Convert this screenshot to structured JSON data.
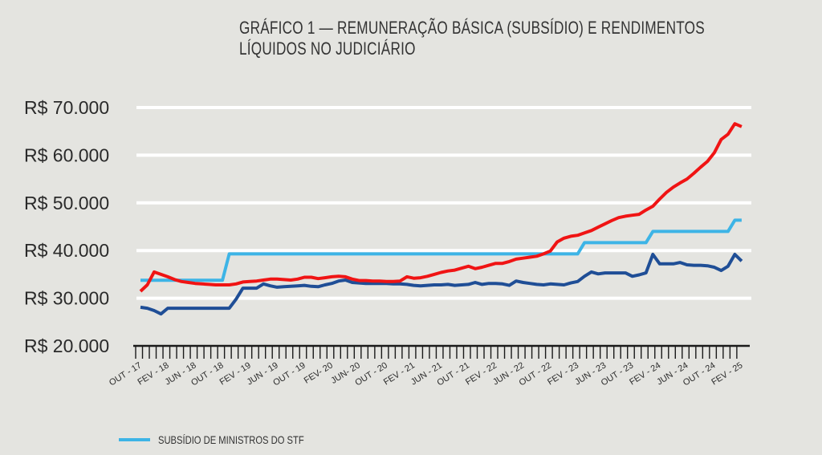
{
  "chart_data": {
    "type": "line",
    "title": "GRÁFICO 1 — REMUNERAÇÃO BÁSICA (SUBSÍDIO) E RENDIMENTOS LÍQUIDOS NO JUDICIÁRIO",
    "title_lines": [
      "GRÁFICO 1 — REMUNERAÇÃO BÁSICA (SUBSÍDIO) E RENDIMENTOS",
      "LÍQUIDOS NO JUDICIÁRIO"
    ],
    "xlabel": "",
    "ylabel": "",
    "ylim": [
      20000,
      70000
    ],
    "y_ticks": [
      20000,
      30000,
      40000,
      50000,
      60000,
      70000
    ],
    "y_tick_labels": [
      "R$ 20.000",
      "R$ 30.000",
      "R$ 40.000",
      "R$ 50.000",
      "R$ 60.000",
      "R$ 70.000"
    ],
    "grid": true,
    "x": [
      "2017-10",
      "2017-11",
      "2017-12",
      "2018-01",
      "2018-02",
      "2018-03",
      "2018-04",
      "2018-05",
      "2018-06",
      "2018-07",
      "2018-08",
      "2018-09",
      "2018-10",
      "2018-11",
      "2018-12",
      "2019-01",
      "2019-02",
      "2019-03",
      "2019-04",
      "2019-05",
      "2019-06",
      "2019-07",
      "2019-08",
      "2019-09",
      "2019-10",
      "2019-11",
      "2019-12",
      "2020-01",
      "2020-02",
      "2020-03",
      "2020-04",
      "2020-05",
      "2020-06",
      "2020-07",
      "2020-08",
      "2020-09",
      "2020-10",
      "2020-11",
      "2020-12",
      "2021-01",
      "2021-02",
      "2021-03",
      "2021-04",
      "2021-05",
      "2021-06",
      "2021-07",
      "2021-08",
      "2021-09",
      "2021-10",
      "2021-11",
      "2021-12",
      "2022-01",
      "2022-02",
      "2022-03",
      "2022-04",
      "2022-05",
      "2022-06",
      "2022-07",
      "2022-08",
      "2022-09",
      "2022-10",
      "2022-11",
      "2022-12",
      "2023-01",
      "2023-02",
      "2023-03",
      "2023-04",
      "2023-05",
      "2023-06",
      "2023-07",
      "2023-08",
      "2023-09",
      "2023-10",
      "2023-11",
      "2023-12",
      "2024-01",
      "2024-02",
      "2024-03",
      "2024-04",
      "2024-05",
      "2024-06",
      "2024-07",
      "2024-08",
      "2024-09",
      "2024-10",
      "2024-11",
      "2024-12",
      "2025-01",
      "2025-02"
    ],
    "x_tick_labels": [
      "OUT - 17",
      "FEV - 18",
      "JUN - 18",
      "OUT - 18",
      "FEV - 19",
      "JUN - 19",
      "OUT - 19",
      "FEV- 20",
      "JUN- 20",
      "OUT - 20",
      "FEV - 21",
      "JUN - 21",
      "OUT - 21",
      "FEV - 22",
      "JUN - 22",
      "OUT - 22",
      "FEV - 23",
      "JUN - 23",
      "OUT - 23",
      "FEV - 24",
      "JUN - 24",
      "OUT - 24",
      "FEV - 25"
    ],
    "x_tick_every": 4,
    "legend_position": "bottom-left",
    "series": [
      {
        "name": "SUBSÍDIO DE MINISTROS DO STF",
        "color": "#3db4e6",
        "values": [
          33763,
          33763,
          33763,
          33763,
          33763,
          33763,
          33763,
          33763,
          33763,
          33763,
          33763,
          33763,
          33763,
          39293,
          39293,
          39293,
          39293,
          39293,
          39293,
          39293,
          39293,
          39293,
          39293,
          39293,
          39293,
          39293,
          39293,
          39293,
          39293,
          39293,
          39293,
          39293,
          39293,
          39293,
          39293,
          39293,
          39293,
          39293,
          39293,
          39293,
          39293,
          39293,
          39293,
          39293,
          39293,
          39293,
          39293,
          39293,
          39293,
          39293,
          39293,
          39293,
          39293,
          39293,
          39293,
          39293,
          39293,
          39293,
          39293,
          39293,
          39293,
          39293,
          39293,
          39293,
          39293,
          41650,
          41650,
          41650,
          41650,
          41650,
          41650,
          41650,
          41650,
          41650,
          41650,
          44008,
          44008,
          44008,
          44008,
          44008,
          44008,
          44008,
          44008,
          44008,
          44008,
          44008,
          44008,
          46366,
          46366
        ]
      },
      {
        "color": "#f01414",
        "values": [
          31450,
          32800,
          35500,
          35000,
          34500,
          33900,
          33500,
          33300,
          33100,
          33000,
          32900,
          32800,
          32800,
          32800,
          33000,
          33400,
          33500,
          33600,
          33800,
          34000,
          34000,
          33900,
          33800,
          34000,
          34400,
          34400,
          34100,
          34300,
          34500,
          34600,
          34500,
          34000,
          33700,
          33700,
          33600,
          33600,
          33500,
          33500,
          33600,
          34500,
          34200,
          34300,
          34600,
          35000,
          35400,
          35700,
          35900,
          36300,
          36700,
          36200,
          36500,
          36900,
          37300,
          37300,
          37700,
          38200,
          38400,
          38600,
          38800,
          39300,
          39900,
          41800,
          42600,
          43000,
          43200,
          43700,
          44200,
          44900,
          45600,
          46300,
          46900,
          47200,
          47400,
          47600,
          48500,
          49300,
          50800,
          52200,
          53300,
          54200,
          55000,
          56200,
          57500,
          58700,
          60500,
          63300,
          64400,
          66600,
          66000
        ]
      },
      {
        "color": "#1f4e96",
        "values": [
          28100,
          27900,
          27400,
          26700,
          27900,
          27900,
          27900,
          27900,
          27900,
          27900,
          27900,
          27900,
          27900,
          27900,
          29800,
          32100,
          32100,
          32100,
          33000,
          32600,
          32300,
          32400,
          32500,
          32600,
          32700,
          32500,
          32400,
          32800,
          33100,
          33600,
          33800,
          33300,
          33200,
          33100,
          33100,
          33100,
          33100,
          33000,
          33000,
          32900,
          32700,
          32600,
          32700,
          32800,
          32800,
          32900,
          32700,
          32800,
          32900,
          33300,
          32900,
          33100,
          33100,
          33000,
          32700,
          33600,
          33300,
          33100,
          32900,
          32800,
          33000,
          32900,
          32800,
          33200,
          33500,
          34600,
          35500,
          35100,
          35300,
          35300,
          35300,
          35300,
          34600,
          34900,
          35300,
          39200,
          37200,
          37200,
          37200,
          37500,
          37000,
          36900,
          36900,
          36800,
          36500,
          35800,
          36700,
          39200,
          37800
        ]
      }
    ]
  }
}
